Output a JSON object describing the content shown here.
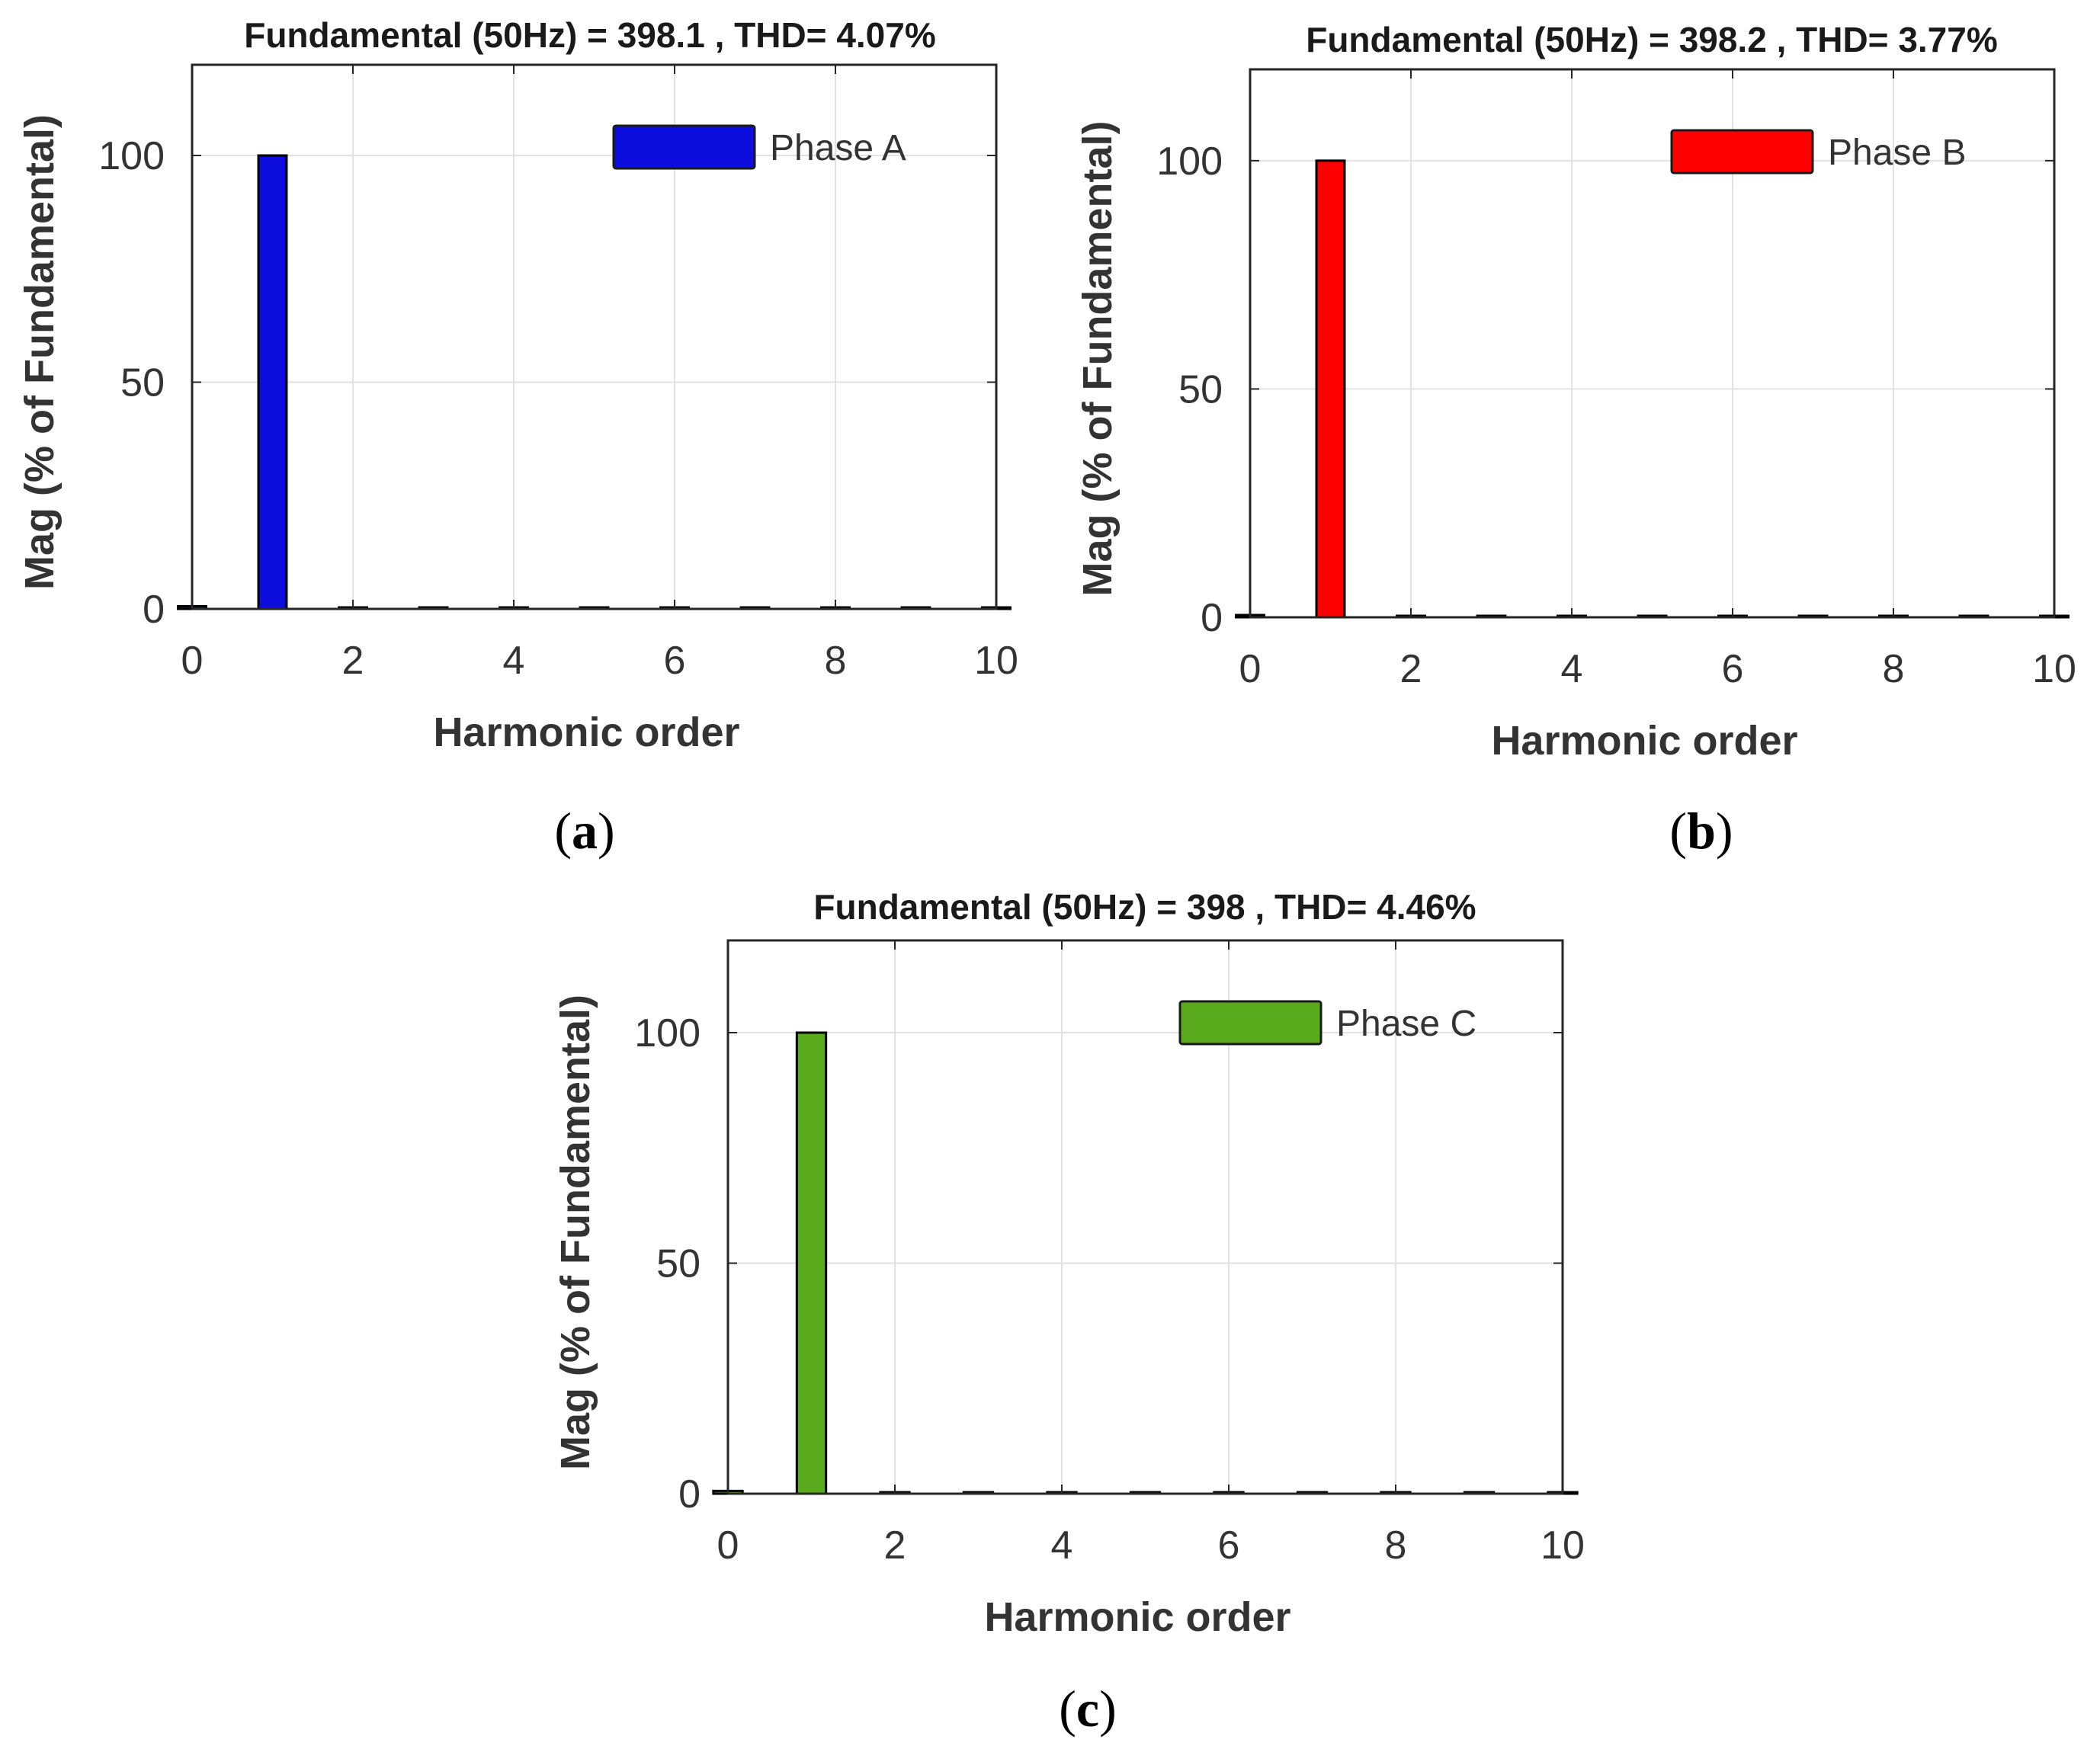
{
  "chart_data": [
    {
      "type": "bar",
      "title": "Fundamental (50Hz) = 398.1 , THD= 4.07%",
      "xlabel": "Harmonic order",
      "ylabel": "Mag (% of Fundamental)",
      "xlim": [
        0,
        10
      ],
      "ylim": [
        0,
        120
      ],
      "xticks": [
        0,
        2,
        4,
        6,
        8,
        10
      ],
      "yticks": [
        0,
        50,
        100
      ],
      "grid": true,
      "legend_position": "top-right",
      "series": [
        {
          "name": "Phase A",
          "color": "#0d0ddd",
          "x": [
            0,
            1,
            2,
            3,
            4,
            5,
            6,
            7,
            8,
            9,
            10
          ],
          "values": [
            0.6,
            100,
            0.3,
            0.2,
            0.2,
            0.2,
            0.2,
            0.2,
            0.2,
            0.2,
            0.2
          ]
        }
      ],
      "caption": {
        "open": "(",
        "letter": "a",
        "close": ")"
      }
    },
    {
      "type": "bar",
      "title": "Fundamental (50Hz) = 398.2 , THD= 3.77%",
      "xlabel": "Harmonic order",
      "ylabel": "Mag (% of Fundamental)",
      "xlim": [
        0,
        10
      ],
      "ylim": [
        0,
        120
      ],
      "xticks": [
        0,
        2,
        4,
        6,
        8,
        10
      ],
      "yticks": [
        0,
        50,
        100
      ],
      "grid": true,
      "legend_position": "top-right",
      "series": [
        {
          "name": "Phase B",
          "color": "#ff0000",
          "x": [
            0,
            1,
            2,
            3,
            4,
            5,
            6,
            7,
            8,
            9,
            10
          ],
          "values": [
            0.5,
            100,
            0.3,
            0.2,
            0.2,
            0.2,
            0.2,
            0.2,
            0.2,
            0.2,
            0.2
          ]
        }
      ],
      "caption": {
        "open": "(",
        "letter": "b",
        "close": ")"
      }
    },
    {
      "type": "bar",
      "title": "Fundamental (50Hz) = 398 , THD= 4.46%",
      "xlabel": "Harmonic order",
      "ylabel": "Mag (% of Fundamental)",
      "xlim": [
        0,
        10
      ],
      "ylim": [
        0,
        120
      ],
      "xticks": [
        0,
        2,
        4,
        6,
        8,
        10
      ],
      "yticks": [
        0,
        50,
        100
      ],
      "grid": true,
      "legend_position": "top-right",
      "series": [
        {
          "name": "Phase C",
          "color": "#5aaa1e",
          "x": [
            0,
            1,
            2,
            3,
            4,
            5,
            6,
            7,
            8,
            9,
            10
          ],
          "values": [
            0.6,
            100,
            0.3,
            0.2,
            0.2,
            0.2,
            0.2,
            0.2,
            0.2,
            0.2,
            0.2
          ]
        }
      ],
      "caption": {
        "open": "(",
        "letter": "c",
        "close": ")"
      }
    }
  ]
}
